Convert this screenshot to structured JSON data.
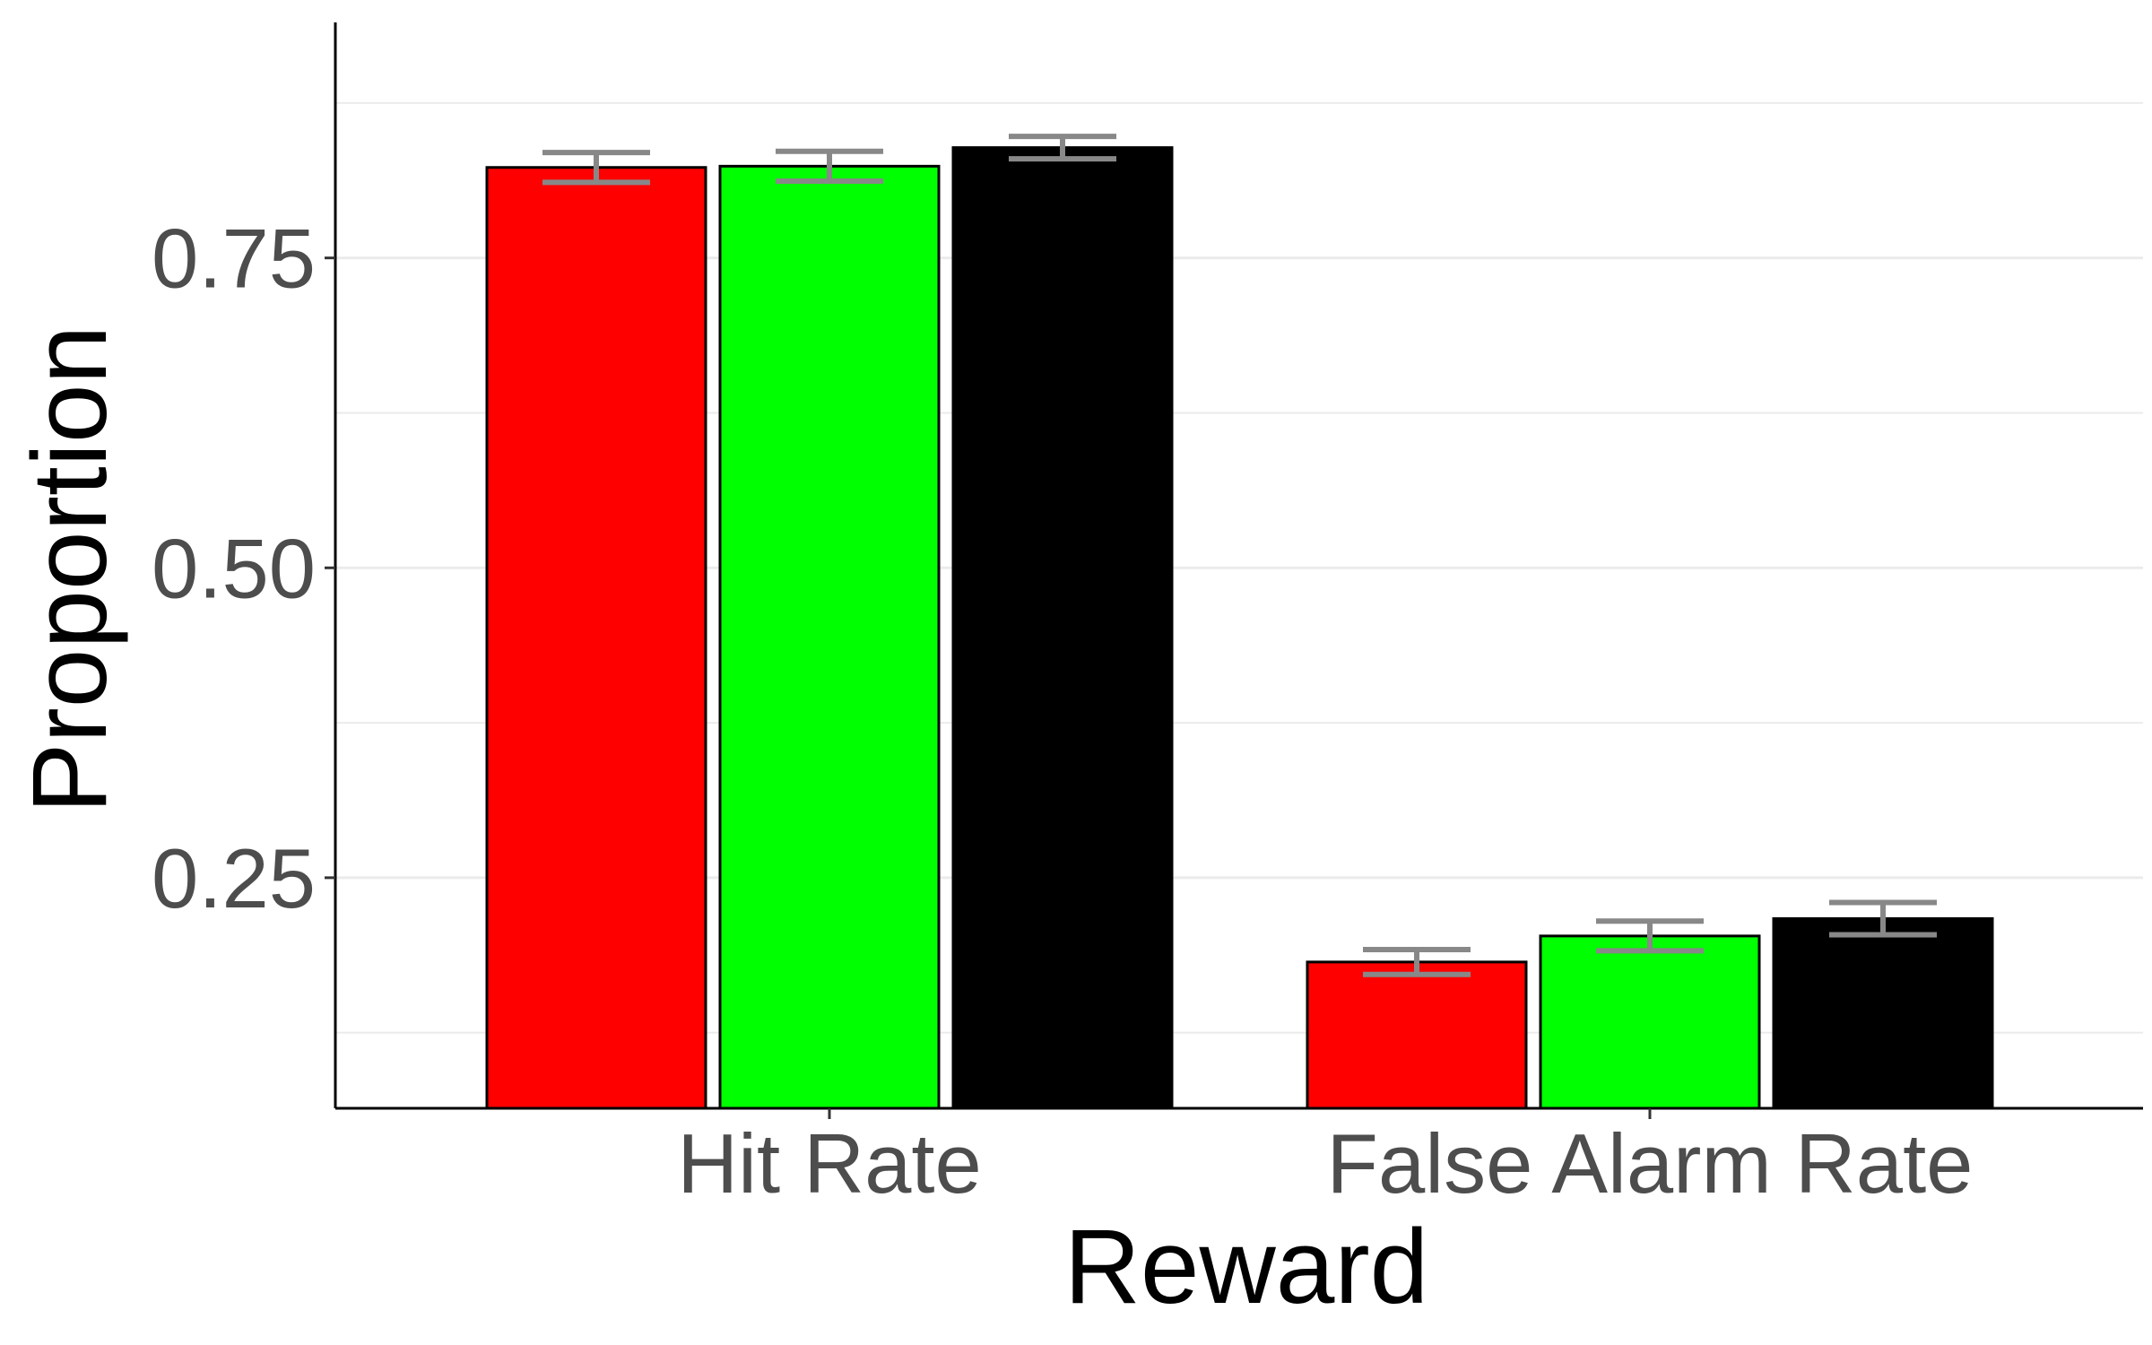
{
  "chart_data": {
    "type": "bar",
    "title": "",
    "xlabel": "Reward",
    "ylabel": "Proportion",
    "categories": [
      "Hit Rate",
      "False Alarm Rate"
    ],
    "yticks": [
      0.25,
      0.5,
      0.75
    ],
    "ytick_labels": [
      "0.25",
      "0.50",
      "0.75"
    ],
    "ylim": [
      0.064,
      0.94
    ],
    "grid": "horizontal",
    "legend": "none",
    "series": [
      {
        "color": "#ff0000",
        "values": [
          0.823,
          0.182
        ],
        "error": [
          0.012,
          0.01
        ]
      },
      {
        "color": "#00ff00",
        "values": [
          0.824,
          0.203
        ],
        "error": [
          0.012,
          0.012
        ]
      },
      {
        "color": "#000000",
        "values": [
          0.839,
          0.217
        ],
        "error": [
          0.009,
          0.013
        ]
      }
    ],
    "colors": {
      "errorbar": "#888888",
      "grid": "#ebebeb",
      "bar_outline": "#000000"
    }
  }
}
